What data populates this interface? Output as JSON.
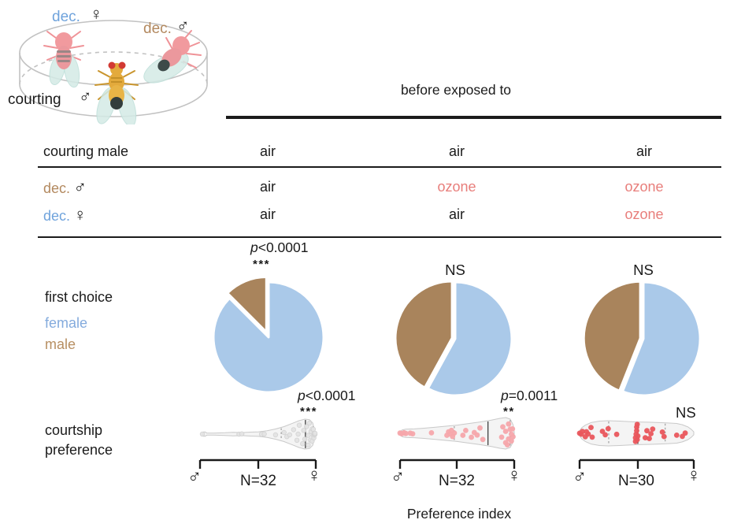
{
  "colors": {
    "female_blue": "#aac9e9",
    "male_brown": "#a9845c",
    "ozone_pink": "#e87e7b",
    "legend_blue": "#84abdd",
    "legend_brown": "#b78f62",
    "decoy_female_blue": "#6fa3dc",
    "decoy_male_brown": "#b3895f"
  },
  "arena": {
    "decoy_female_label": "dec.",
    "decoy_female_symbol": "♀",
    "decoy_male_label": "dec.",
    "decoy_male_symbol": "♂",
    "courting_label": "courting",
    "courting_symbol": "♂"
  },
  "header": {
    "title": "before exposed to"
  },
  "table": {
    "header_row": {
      "label": "courting male",
      "values": [
        "air",
        "air",
        "air"
      ]
    },
    "rows": [
      {
        "label": "dec.",
        "symbol": "♂",
        "values": [
          "air",
          "ozone",
          "ozone"
        ]
      },
      {
        "label": "dec.",
        "symbol": "♀",
        "values": [
          "air",
          "air",
          "ozone"
        ]
      }
    ]
  },
  "legend": {
    "title": "first choice",
    "items": [
      {
        "label": "female"
      },
      {
        "label": "male"
      }
    ]
  },
  "row_label_violin": {
    "line1": "courtship",
    "line2": "preference"
  },
  "xlabel": "Preference index",
  "chart_data": [
    {
      "type": "pie",
      "condition": {
        "courting_male": "air",
        "dec_male": "air",
        "dec_female": "air"
      },
      "categories": [
        "female",
        "male"
      ],
      "values": [
        87.5,
        12.5
      ],
      "colors": [
        "#aac9e9",
        "#a9845c"
      ],
      "significance": "p<0.0001",
      "stars": "***"
    },
    {
      "type": "pie",
      "condition": {
        "courting_male": "air",
        "dec_male": "ozone",
        "dec_female": "air"
      },
      "categories": [
        "female",
        "male"
      ],
      "values": [
        58,
        42
      ],
      "colors": [
        "#aac9e9",
        "#a9845c"
      ],
      "significance": "NS",
      "stars": ""
    },
    {
      "type": "pie",
      "condition": {
        "courting_male": "air",
        "dec_male": "ozone",
        "dec_female": "ozone"
      },
      "categories": [
        "female",
        "male"
      ],
      "values": [
        56,
        44
      ],
      "colors": [
        "#aac9e9",
        "#a9845c"
      ],
      "significance": "NS",
      "stars": ""
    },
    {
      "type": "violin",
      "n": 32,
      "n_label": "N=32",
      "left_symbol": "♂",
      "right_symbol": "♀",
      "significance": "p<0.0001",
      "stars": "***",
      "xrange": [
        -1,
        1
      ],
      "median": 0.83,
      "quartiles": [
        0.4,
        0.97
      ],
      "profile": [
        [
          -1,
          0.05
        ],
        [
          -0.98,
          0.14
        ],
        [
          -0.95,
          0.14
        ],
        [
          -0.92,
          0.07
        ],
        [
          -0.8,
          0.07
        ],
        [
          -0.6,
          0.09
        ],
        [
          -0.45,
          0.12
        ],
        [
          -0.3,
          0.1
        ],
        [
          -0.15,
          0.13
        ],
        [
          0,
          0.15
        ],
        [
          0.15,
          0.22
        ],
        [
          0.3,
          0.34
        ],
        [
          0.45,
          0.5
        ],
        [
          0.6,
          0.72
        ],
        [
          0.72,
          0.9
        ],
        [
          0.82,
          1.0
        ],
        [
          0.9,
          0.97
        ],
        [
          0.96,
          0.75
        ],
        [
          1,
          0.1
        ]
      ],
      "points": [
        [
          -1,
          0
        ],
        [
          -0.35,
          0.1
        ],
        [
          -0.3,
          -0.2
        ],
        [
          0.05,
          0.15
        ],
        [
          0.1,
          -0.1
        ],
        [
          0.3,
          0.3
        ],
        [
          0.45,
          -0.3
        ],
        [
          0.5,
          0.4
        ],
        [
          0.55,
          0.1
        ],
        [
          0.62,
          -0.5
        ],
        [
          0.68,
          0.6
        ],
        [
          0.7,
          0
        ],
        [
          0.72,
          -0.8
        ],
        [
          0.78,
          0.8
        ],
        [
          0.8,
          -0.3
        ],
        [
          0.82,
          0.4
        ],
        [
          0.85,
          -0.6
        ],
        [
          0.88,
          0.9
        ],
        [
          0.88,
          0.1
        ],
        [
          0.9,
          -0.9
        ],
        [
          0.92,
          0.55
        ],
        [
          0.93,
          -0.25
        ],
        [
          0.95,
          0.75
        ],
        [
          0.95,
          -0.55
        ],
        [
          0.97,
          0.25
        ],
        [
          0.97,
          -0.75
        ],
        [
          0.98,
          0.95
        ],
        [
          0.98,
          -0.1
        ],
        [
          0.99,
          0.5
        ],
        [
          0.99,
          -0.4
        ],
        [
          1,
          0.2
        ],
        [
          1,
          -0.65
        ]
      ]
    },
    {
      "type": "violin",
      "n": 32,
      "n_label": "N=32",
      "left_symbol": "♂",
      "right_symbol": "♀",
      "significance": "p=0.0011",
      "stars": "**",
      "xrange": [
        -1,
        1
      ],
      "median": 0.54,
      "quartiles": [
        -0.05,
        0.93
      ],
      "profile": [
        [
          -1,
          0.12
        ],
        [
          -0.96,
          0.22
        ],
        [
          -0.9,
          0.26
        ],
        [
          -0.75,
          0.28
        ],
        [
          -0.6,
          0.32
        ],
        [
          -0.4,
          0.38
        ],
        [
          -0.2,
          0.45
        ],
        [
          0,
          0.52
        ],
        [
          0.2,
          0.62
        ],
        [
          0.4,
          0.72
        ],
        [
          0.6,
          0.84
        ],
        [
          0.75,
          0.95
        ],
        [
          0.85,
          1.0
        ],
        [
          0.93,
          0.9
        ],
        [
          0.98,
          0.55
        ],
        [
          1,
          0.1
        ]
      ],
      "points": [
        [
          -1,
          -0.2
        ],
        [
          -0.97,
          0.3
        ],
        [
          -0.93,
          -0.4
        ],
        [
          -0.9,
          0.1
        ],
        [
          -0.82,
          -0.1
        ],
        [
          -0.78,
          0.25
        ],
        [
          -0.45,
          -0.15
        ],
        [
          -0.18,
          0.4
        ],
        [
          -0.15,
          -0.3
        ],
        [
          -0.12,
          0.1
        ],
        [
          -0.1,
          -0.55
        ],
        [
          -0.08,
          0.6
        ],
        [
          -0.05,
          -0.05
        ],
        [
          0.1,
          0.3
        ],
        [
          0.15,
          -0.4
        ],
        [
          0.25,
          0.5
        ],
        [
          0.3,
          -0.1
        ],
        [
          0.35,
          0.2
        ],
        [
          0.4,
          -0.6
        ],
        [
          0.45,
          0.65
        ],
        [
          0.78,
          0.3
        ],
        [
          0.8,
          -0.5
        ],
        [
          0.85,
          0.7
        ],
        [
          0.85,
          -0.15
        ],
        [
          0.88,
          0.9
        ],
        [
          0.9,
          -0.75
        ],
        [
          0.9,
          0.45
        ],
        [
          0.93,
          -0.35
        ],
        [
          0.95,
          0.8
        ],
        [
          0.95,
          0.1
        ],
        [
          0.97,
          -0.6
        ],
        [
          0.98,
          0.55
        ]
      ]
    },
    {
      "type": "violin",
      "n": 30,
      "n_label": "N=30",
      "left_symbol": "♂",
      "right_symbol": "♀",
      "significance": "NS",
      "stars": "",
      "xrange": [
        -1,
        1
      ],
      "median": 0.02,
      "quartiles": [
        -0.49,
        0.5
      ],
      "profile": [
        [
          -1,
          0.2
        ],
        [
          -0.96,
          0.45
        ],
        [
          -0.9,
          0.65
        ],
        [
          -0.8,
          0.85
        ],
        [
          -0.65,
          0.97
        ],
        [
          -0.5,
          1.0
        ],
        [
          -0.3,
          0.97
        ],
        [
          -0.1,
          0.92
        ],
        [
          0,
          0.9
        ],
        [
          0.2,
          0.88
        ],
        [
          0.4,
          0.85
        ],
        [
          0.55,
          0.82
        ],
        [
          0.7,
          0.78
        ],
        [
          0.8,
          0.68
        ],
        [
          0.9,
          0.5
        ],
        [
          0.96,
          0.3
        ],
        [
          1,
          0.12
        ]
      ],
      "points": [
        [
          -1,
          -0.1
        ],
        [
          -0.97,
          0.35
        ],
        [
          -0.95,
          -0.5
        ],
        [
          -0.9,
          0.6
        ],
        [
          -0.88,
          -0.25
        ],
        [
          -0.85,
          0.1
        ],
        [
          -0.8,
          -0.7
        ],
        [
          -0.78,
          0.45
        ],
        [
          -0.6,
          -0.2
        ],
        [
          -0.55,
          0.15
        ],
        [
          -0.5,
          -0.45
        ],
        [
          -0.35,
          0.1
        ],
        [
          -0.02,
          0.9
        ],
        [
          -0.02,
          0.5
        ],
        [
          -0.01,
          0.1
        ],
        [
          0,
          -0.3
        ],
        [
          0,
          -0.7
        ],
        [
          0.01,
          -1
        ],
        [
          0.01,
          0.7
        ],
        [
          0.02,
          0.3
        ],
        [
          0.15,
          0.5
        ],
        [
          0.18,
          -0.3
        ],
        [
          0.22,
          0.6
        ],
        [
          0.25,
          0.05
        ],
        [
          0.28,
          -0.5
        ],
        [
          0.45,
          -0.15
        ],
        [
          0.48,
          0.4
        ],
        [
          0.7,
          0.25
        ],
        [
          0.8,
          0.5
        ],
        [
          0.85,
          -0.05
        ]
      ]
    }
  ]
}
